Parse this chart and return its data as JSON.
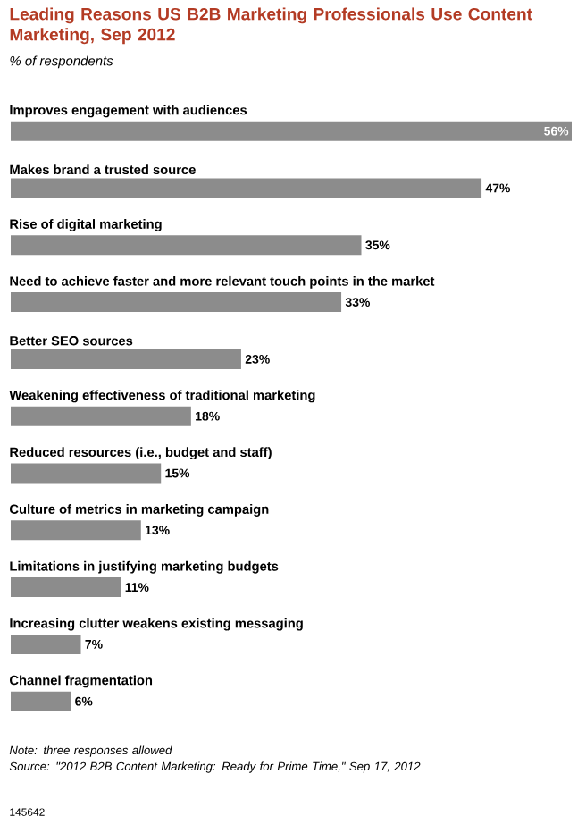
{
  "chart_data": {
    "type": "bar",
    "orientation": "horizontal",
    "title": "Leading Reasons US B2B Marketing Professionals Use Content Marketing, Sep 2012",
    "subtitle": "% of respondents",
    "categories": [
      "Improves engagement with audiences",
      "Makes brand a trusted source",
      "Rise of digital marketing",
      "Need to achieve faster and more relevant touch points in the market",
      "Better SEO sources",
      "Weakening effectiveness of traditional marketing",
      "Reduced resources (i.e., budget and staff)",
      "Culture of metrics in marketing campaign",
      "Limitations in justifying marketing budgets",
      "Increasing clutter weakens existing messaging",
      "Channel fragmentation"
    ],
    "values": [
      56,
      47,
      35,
      33,
      23,
      18,
      15,
      13,
      11,
      7,
      6
    ],
    "value_labels": [
      "56%",
      "47%",
      "35%",
      "33%",
      "23%",
      "18%",
      "15%",
      "13%",
      "11%",
      "7%",
      "6%"
    ],
    "color": "#8c8c8c",
    "annotations": [
      "Note: three responses allowed",
      "Source: \"2012 B2B Content Marketing: Ready for Prime Time,\" Sep 17, 2012",
      "145642"
    ]
  }
}
